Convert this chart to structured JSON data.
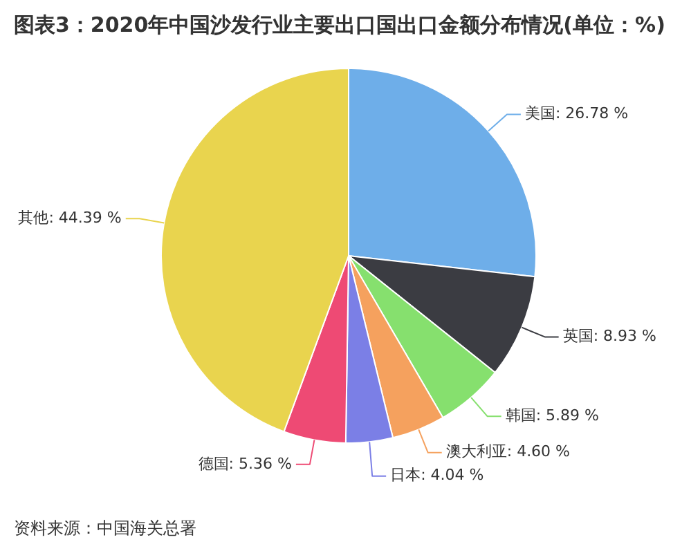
{
  "chart_data": {
    "type": "pie",
    "title": "图表3：2020年中国沙发行业主要出口国出口金额分布情况(单位：%)",
    "categories": [
      "美国",
      "英国",
      "韩国",
      "澳大利亚",
      "日本",
      "德国",
      "其他"
    ],
    "values": [
      26.78,
      8.93,
      5.89,
      4.6,
      4.04,
      5.36,
      44.39
    ],
    "colors": [
      "#6eaee9",
      "#3b3c42",
      "#86e06e",
      "#f5a15e",
      "#7b7fe6",
      "#ee4a74",
      "#e9d44e"
    ],
    "value_labels": [
      "26.78 %",
      "8.93 %",
      "5.89 %",
      "4.60 %",
      "4.04 %",
      "5.36 %",
      "44.39 %"
    ],
    "annotations": [
      "资料来源：中国海关总署"
    ]
  }
}
